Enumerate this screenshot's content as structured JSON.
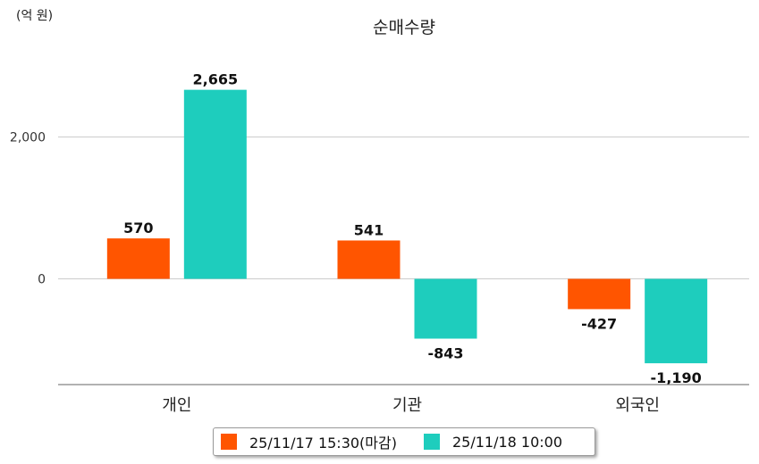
{
  "chart_data": {
    "type": "bar",
    "title": "순매수량",
    "unit_label": "(억 원)",
    "categories": [
      "개인",
      "기관",
      "외국인"
    ],
    "series": [
      {
        "name": "25/11/17 15:30(마감)",
        "color": "#ff5500",
        "values": [
          570,
          541,
          -427
        ],
        "labels": [
          "570",
          "541",
          "-427"
        ]
      },
      {
        "name": "25/11/18 10:00",
        "color": "#1ecdbd",
        "values": [
          2665,
          -843,
          -1190
        ],
        "labels": [
          "2,665",
          "-843",
          "-1,190"
        ]
      }
    ],
    "yticks": [
      {
        "value": 0,
        "label": "0"
      },
      {
        "value": 2000,
        "label": "2,000"
      }
    ],
    "ylim": [
      -1490,
      3190
    ],
    "grid": true,
    "legend_position": "bottom-center"
  }
}
